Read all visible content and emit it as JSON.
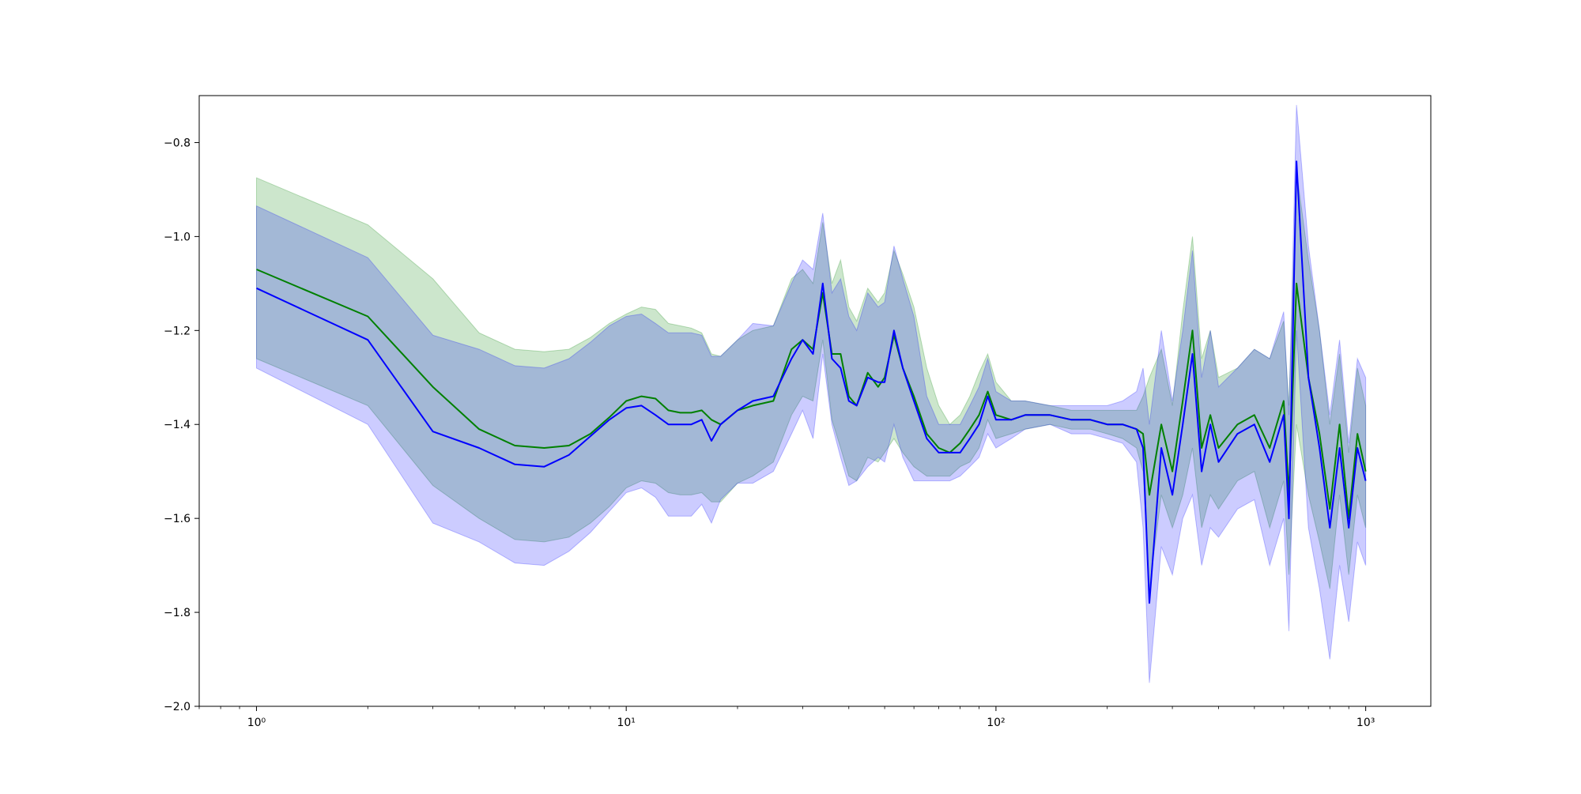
{
  "chart_data": {
    "type": "line",
    "title": "",
    "xlabel": "",
    "ylabel": "",
    "xscale": "log",
    "xlim": [
      0.7,
      1500
    ],
    "ylim": [
      -2.0,
      -0.7
    ],
    "grid": false,
    "legend": "none",
    "x_ticks": [
      {
        "value": 1,
        "label": "10⁰"
      },
      {
        "value": 10,
        "label": "10¹"
      },
      {
        "value": 100,
        "label": "10²"
      },
      {
        "value": 1000,
        "label": "10³"
      }
    ],
    "y_ticks": [
      {
        "value": -2.0,
        "label": "−2.0"
      },
      {
        "value": -1.8,
        "label": "−1.8"
      },
      {
        "value": -1.6,
        "label": "−1.6"
      },
      {
        "value": -1.4,
        "label": "−1.4"
      },
      {
        "value": -1.2,
        "label": "−1.2"
      },
      {
        "value": -1.0,
        "label": "−1.0"
      },
      {
        "value": -0.8,
        "label": "−0.8"
      }
    ],
    "series": [
      {
        "color": "#008000",
        "band_color": "#008000",
        "band_opacity": 0.2,
        "x": [
          1,
          2,
          3,
          4,
          5,
          6,
          7,
          8,
          9,
          10,
          11,
          12,
          13,
          14,
          15,
          16,
          17,
          18,
          20,
          22,
          25,
          28,
          30,
          32,
          34,
          36,
          38,
          40,
          42,
          45,
          48,
          50,
          53,
          56,
          60,
          65,
          70,
          75,
          80,
          85,
          90,
          95,
          100,
          110,
          120,
          140,
          160,
          180,
          200,
          220,
          240,
          250,
          260,
          280,
          300,
          320,
          340,
          360,
          380,
          400,
          450,
          500,
          550,
          600,
          620,
          650,
          700,
          750,
          800,
          850,
          900,
          950,
          1000
        ],
        "y": [
          -1.07,
          -1.17,
          -1.32,
          -1.41,
          -1.445,
          -1.45,
          -1.445,
          -1.42,
          -1.385,
          -1.35,
          -1.34,
          -1.345,
          -1.37,
          -1.375,
          -1.375,
          -1.37,
          -1.39,
          -1.4,
          -1.37,
          -1.36,
          -1.35,
          -1.24,
          -1.22,
          -1.24,
          -1.12,
          -1.25,
          -1.25,
          -1.34,
          -1.36,
          -1.29,
          -1.32,
          -1.3,
          -1.21,
          -1.28,
          -1.34,
          -1.42,
          -1.45,
          -1.46,
          -1.44,
          -1.41,
          -1.38,
          -1.33,
          -1.38,
          -1.39,
          -1.38,
          -1.38,
          -1.39,
          -1.39,
          -1.4,
          -1.4,
          -1.41,
          -1.42,
          -1.55,
          -1.4,
          -1.5,
          -1.35,
          -1.2,
          -1.45,
          -1.38,
          -1.45,
          -1.4,
          -1.38,
          -1.45,
          -1.35,
          -1.55,
          -1.1,
          -1.3,
          -1.42,
          -1.58,
          -1.4,
          -1.6,
          -1.42,
          -1.5
        ],
        "lower": [
          -1.26,
          -1.36,
          -1.53,
          -1.6,
          -1.645,
          -1.65,
          -1.64,
          -1.61,
          -1.575,
          -1.535,
          -1.52,
          -1.525,
          -1.545,
          -1.55,
          -1.55,
          -1.545,
          -1.565,
          -1.565,
          -1.525,
          -1.51,
          -1.48,
          -1.38,
          -1.34,
          -1.35,
          -1.22,
          -1.39,
          -1.45,
          -1.51,
          -1.52,
          -1.47,
          -1.48,
          -1.46,
          -1.43,
          -1.46,
          -1.49,
          -1.51,
          -1.51,
          -1.51,
          -1.49,
          -1.48,
          -1.45,
          -1.39,
          -1.43,
          -1.42,
          -1.41,
          -1.4,
          -1.41,
          -1.41,
          -1.42,
          -1.43,
          -1.45,
          -1.5,
          -1.75,
          -1.55,
          -1.62,
          -1.55,
          -1.45,
          -1.62,
          -1.55,
          -1.58,
          -1.52,
          -1.5,
          -1.62,
          -1.52,
          -1.72,
          -1.4,
          -1.55,
          -1.65,
          -1.75,
          -1.55,
          -1.72,
          -1.55,
          -1.62
        ],
        "upper": [
          -0.875,
          -0.975,
          -1.09,
          -1.205,
          -1.24,
          -1.245,
          -1.24,
          -1.215,
          -1.185,
          -1.165,
          -1.15,
          -1.155,
          -1.185,
          -1.19,
          -1.195,
          -1.205,
          -1.25,
          -1.255,
          -1.22,
          -1.2,
          -1.19,
          -1.09,
          -1.07,
          -1.1,
          -0.97,
          -1.1,
          -1.05,
          -1.15,
          -1.18,
          -1.11,
          -1.14,
          -1.12,
          -1.03,
          -1.08,
          -1.15,
          -1.28,
          -1.36,
          -1.4,
          -1.38,
          -1.34,
          -1.29,
          -1.25,
          -1.31,
          -1.35,
          -1.35,
          -1.36,
          -1.37,
          -1.37,
          -1.37,
          -1.37,
          -1.37,
          -1.34,
          -1.3,
          -1.24,
          -1.36,
          -1.16,
          -1.0,
          -1.26,
          -1.2,
          -1.3,
          -1.28,
          -1.24,
          -1.26,
          -1.18,
          -1.36,
          -0.86,
          -1.05,
          -1.2,
          -1.4,
          -1.25,
          -1.46,
          -1.28,
          -1.36
        ]
      },
      {
        "color": "#0000ff",
        "band_color": "#0000ff",
        "band_opacity": 0.2,
        "x": [
          1,
          2,
          3,
          4,
          5,
          6,
          7,
          8,
          9,
          10,
          11,
          12,
          13,
          14,
          15,
          16,
          17,
          18,
          20,
          22,
          25,
          28,
          30,
          32,
          34,
          36,
          38,
          40,
          42,
          45,
          48,
          50,
          53,
          56,
          60,
          65,
          70,
          75,
          80,
          85,
          90,
          95,
          100,
          110,
          120,
          140,
          160,
          180,
          200,
          220,
          240,
          250,
          260,
          280,
          300,
          320,
          340,
          360,
          380,
          400,
          450,
          500,
          550,
          600,
          620,
          650,
          700,
          750,
          800,
          850,
          900,
          950,
          1000
        ],
        "y": [
          -1.11,
          -1.22,
          -1.415,
          -1.45,
          -1.485,
          -1.49,
          -1.465,
          -1.425,
          -1.39,
          -1.365,
          -1.36,
          -1.38,
          -1.4,
          -1.4,
          -1.4,
          -1.39,
          -1.435,
          -1.4,
          -1.37,
          -1.35,
          -1.34,
          -1.26,
          -1.22,
          -1.25,
          -1.1,
          -1.26,
          -1.28,
          -1.35,
          -1.36,
          -1.3,
          -1.31,
          -1.31,
          -1.2,
          -1.28,
          -1.35,
          -1.43,
          -1.46,
          -1.46,
          -1.46,
          -1.43,
          -1.4,
          -1.34,
          -1.39,
          -1.39,
          -1.38,
          -1.38,
          -1.39,
          -1.39,
          -1.4,
          -1.4,
          -1.41,
          -1.45,
          -1.78,
          -1.45,
          -1.55,
          -1.4,
          -1.25,
          -1.5,
          -1.4,
          -1.48,
          -1.42,
          -1.4,
          -1.48,
          -1.38,
          -1.6,
          -0.84,
          -1.3,
          -1.45,
          -1.62,
          -1.45,
          -1.62,
          -1.45,
          -1.52
        ],
        "lower": [
          -1.28,
          -1.4,
          -1.61,
          -1.65,
          -1.695,
          -1.7,
          -1.67,
          -1.63,
          -1.585,
          -1.545,
          -1.535,
          -1.555,
          -1.595,
          -1.595,
          -1.595,
          -1.57,
          -1.61,
          -1.56,
          -1.525,
          -1.525,
          -1.5,
          -1.42,
          -1.37,
          -1.43,
          -1.25,
          -1.4,
          -1.47,
          -1.53,
          -1.52,
          -1.49,
          -1.47,
          -1.48,
          -1.4,
          -1.47,
          -1.52,
          -1.52,
          -1.52,
          -1.52,
          -1.51,
          -1.49,
          -1.47,
          -1.42,
          -1.45,
          -1.43,
          -1.41,
          -1.4,
          -1.42,
          -1.42,
          -1.43,
          -1.44,
          -1.48,
          -1.62,
          -1.95,
          -1.66,
          -1.72,
          -1.6,
          -1.55,
          -1.7,
          -1.62,
          -1.64,
          -1.58,
          -1.56,
          -1.7,
          -1.6,
          -1.84,
          -1.2,
          -1.62,
          -1.75,
          -1.9,
          -1.7,
          -1.82,
          -1.65,
          -1.7
        ],
        "upper": [
          -0.935,
          -1.045,
          -1.21,
          -1.24,
          -1.275,
          -1.28,
          -1.26,
          -1.225,
          -1.19,
          -1.17,
          -1.165,
          -1.185,
          -1.205,
          -1.205,
          -1.205,
          -1.21,
          -1.255,
          -1.255,
          -1.22,
          -1.185,
          -1.19,
          -1.1,
          -1.05,
          -1.07,
          -0.95,
          -1.12,
          -1.09,
          -1.17,
          -1.2,
          -1.12,
          -1.15,
          -1.14,
          -1.02,
          -1.09,
          -1.17,
          -1.34,
          -1.4,
          -1.4,
          -1.4,
          -1.36,
          -1.32,
          -1.26,
          -1.33,
          -1.35,
          -1.35,
          -1.36,
          -1.36,
          -1.36,
          -1.36,
          -1.35,
          -1.33,
          -1.28,
          -1.4,
          -1.2,
          -1.35,
          -1.2,
          -1.03,
          -1.3,
          -1.2,
          -1.32,
          -1.28,
          -1.24,
          -1.26,
          -1.16,
          -1.38,
          -0.72,
          -1.02,
          -1.2,
          -1.38,
          -1.22,
          -1.44,
          -1.26,
          -1.3
        ]
      }
    ]
  }
}
